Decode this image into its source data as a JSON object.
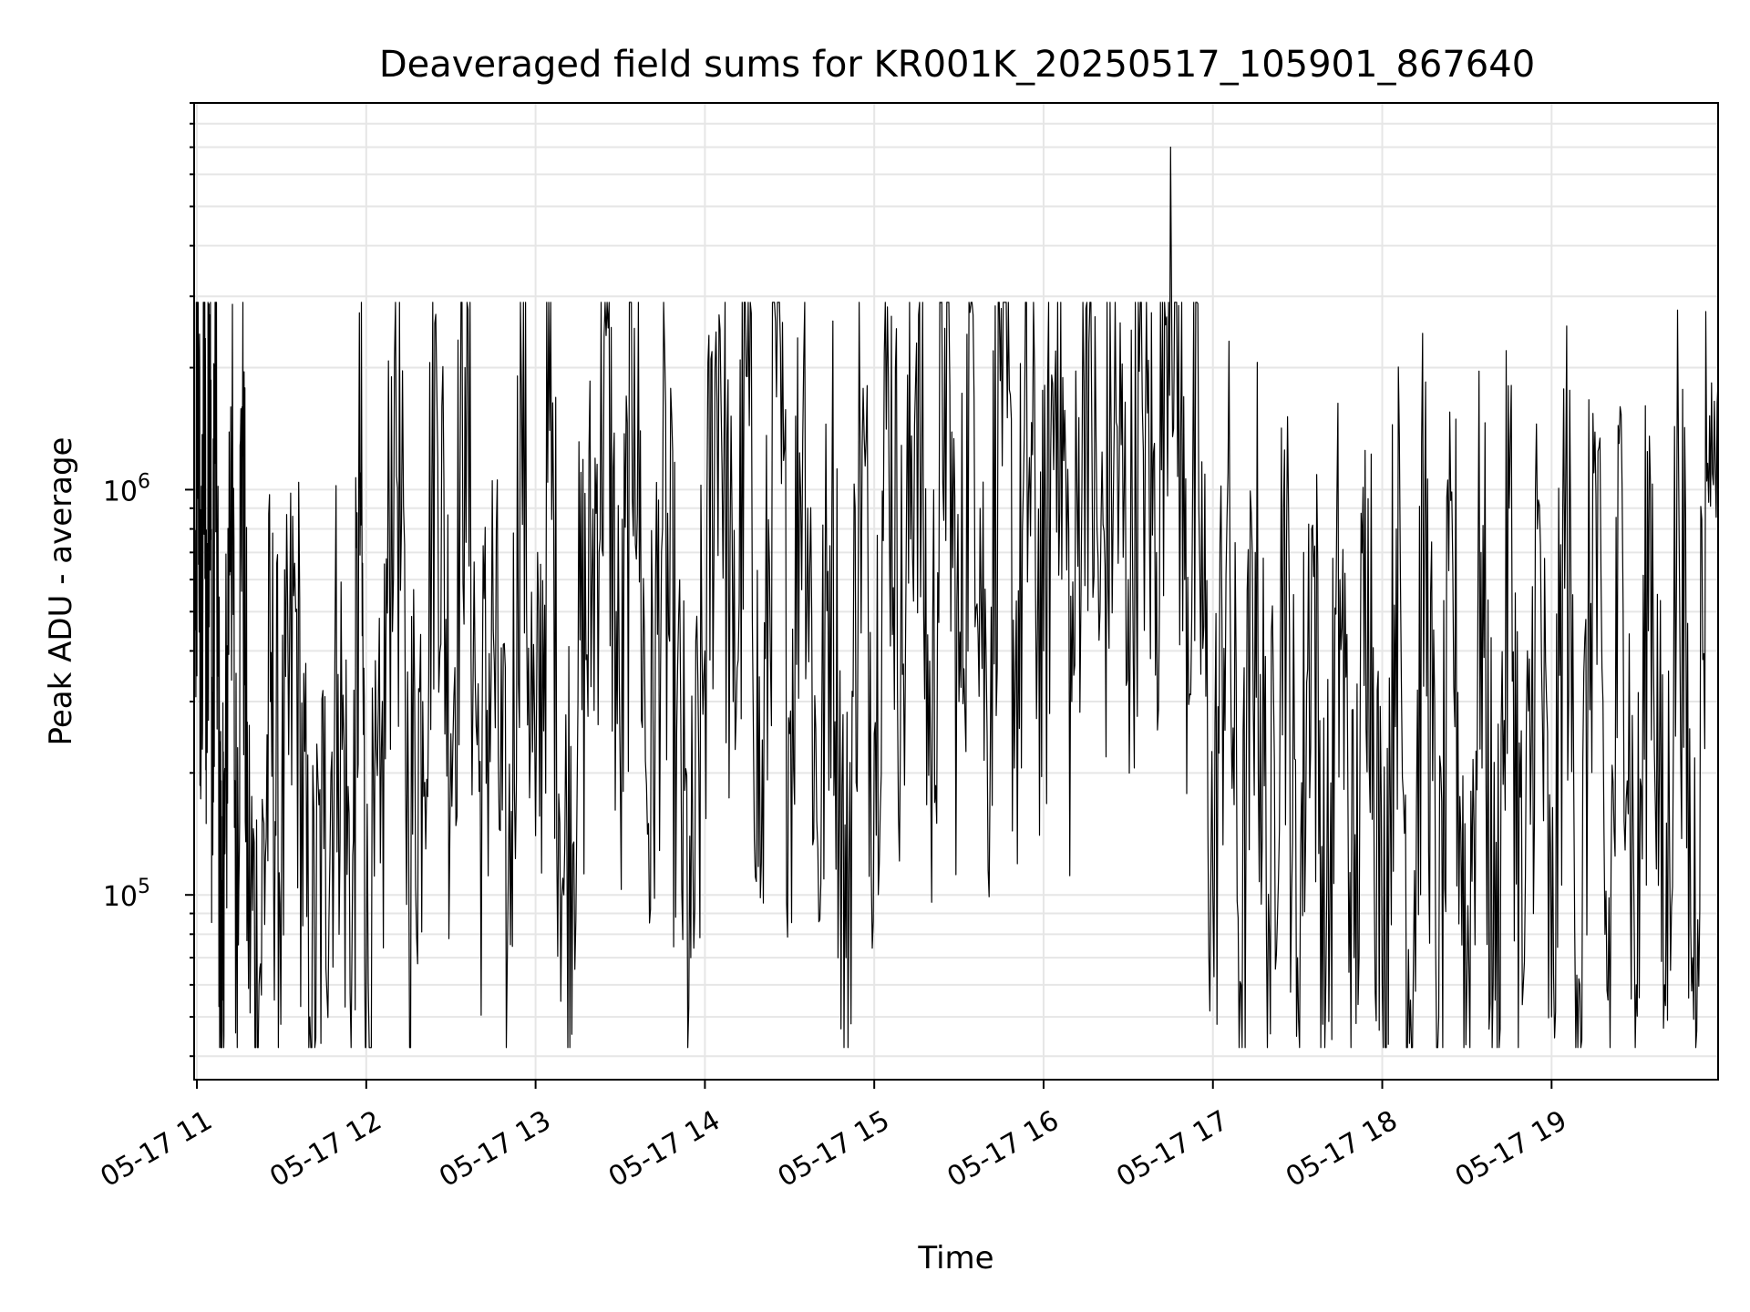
{
  "chart_data": {
    "type": "line",
    "title": "Deaveraged field sums for KR001K_20250517_105901_867640",
    "xlabel": "Time",
    "ylabel": "Peak ADU - average",
    "yscale": "log",
    "xlim": [
      "2025-05-17T10:59:01",
      "2025-05-17T19:59:00"
    ],
    "ylim": [
      35000,
      9000000
    ],
    "grid": true,
    "x_ticks": [
      "05-17 11",
      "05-17 12",
      "05-17 13",
      "05-17 14",
      "05-17 15",
      "05-17 16",
      "05-17 17",
      "05-17 18",
      "05-17 19"
    ],
    "y_ticks": [
      {
        "base": "10",
        "exp": "5"
      },
      {
        "base": "10",
        "exp": "6"
      }
    ],
    "series": [
      {
        "color": "#000000",
        "note": "Dense noisy series; representative points as [time, value] pairs",
        "points": [
          [
            "2025-05-17T10:59:30",
            450000
          ],
          [
            "2025-05-17T11:00:30",
            1900000
          ],
          [
            "2025-05-17T11:01:30",
            250000
          ],
          [
            "2025-05-17T11:02:30",
            2000000
          ],
          [
            "2025-05-17T11:03:30",
            350000
          ],
          [
            "2025-05-17T11:04:30",
            2700000
          ],
          [
            "2025-05-17T11:05:30",
            160000
          ],
          [
            "2025-05-17T11:06:30",
            2300000
          ],
          [
            "2025-05-17T11:08:00",
            120000
          ],
          [
            "2025-05-17T11:09:00",
            55000
          ],
          [
            "2025-05-17T11:10:00",
            140000
          ],
          [
            "2025-05-17T11:12:00",
            1600000
          ],
          [
            "2025-05-17T11:14:00",
            90000
          ],
          [
            "2025-05-17T11:16:00",
            1600000
          ],
          [
            "2025-05-17T11:18:00",
            110000
          ],
          [
            "2025-05-17T11:22:00",
            60000
          ],
          [
            "2025-05-17T11:26:00",
            300000
          ],
          [
            "2025-05-17T11:30:00",
            120000
          ],
          [
            "2025-05-17T11:35:00",
            500000
          ],
          [
            "2025-05-17T11:40:00",
            50000
          ],
          [
            "2025-05-17T11:45:00",
            130000
          ],
          [
            "2025-05-17T11:50:00",
            350000
          ],
          [
            "2025-05-17T11:55:00",
            80000
          ],
          [
            "2025-05-17T11:58:00",
            1100000
          ],
          [
            "2025-05-17T12:00:00",
            55000
          ],
          [
            "2025-05-17T12:05:00",
            120000
          ],
          [
            "2025-05-17T12:10:00",
            2100000
          ],
          [
            "2025-05-17T12:15:00",
            150000
          ],
          [
            "2025-05-17T12:20:00",
            300000
          ],
          [
            "2025-05-17T12:25:00",
            1800000
          ],
          [
            "2025-05-17T12:30:00",
            250000
          ],
          [
            "2025-05-17T12:35:00",
            2000000
          ],
          [
            "2025-05-17T12:40:00",
            180000
          ],
          [
            "2025-05-17T12:45:00",
            450000
          ],
          [
            "2025-05-17T12:50:00",
            70000
          ],
          [
            "2025-05-17T12:55:00",
            1800000
          ],
          [
            "2025-05-17T13:00:00",
            140000
          ],
          [
            "2025-05-17T13:05:00",
            1400000
          ],
          [
            "2025-05-17T13:10:00",
            100000
          ],
          [
            "2025-05-17T13:15:00",
            300000
          ],
          [
            "2025-05-17T13:20:00",
            600000
          ],
          [
            "2025-05-17T13:25:00",
            2400000
          ],
          [
            "2025-05-17T13:30:00",
            200000
          ],
          [
            "2025-05-17T13:35:00",
            2500000
          ],
          [
            "2025-05-17T13:40:00",
            150000
          ],
          [
            "2025-05-17T13:45:00",
            800000
          ],
          [
            "2025-05-17T13:50:00",
            250000
          ],
          [
            "2025-05-17T13:55:00",
            70000
          ],
          [
            "2025-05-17T14:00:00",
            400000
          ],
          [
            "2025-05-17T14:05:00",
            2700000
          ],
          [
            "2025-05-17T14:10:00",
            300000
          ],
          [
            "2025-05-17T14:15:00",
            1900000
          ],
          [
            "2025-05-17T14:20:00",
            120000
          ],
          [
            "2025-05-17T14:25:00",
            2600000
          ],
          [
            "2025-05-17T14:30:00",
            250000
          ],
          [
            "2025-05-17T14:35:00",
            2100000
          ],
          [
            "2025-05-17T14:40:00",
            130000
          ],
          [
            "2025-05-17T14:45:00",
            900000
          ],
          [
            "2025-05-17T14:50:00",
            70000
          ],
          [
            "2025-05-17T14:55:00",
            1300000
          ],
          [
            "2025-05-17T15:00:00",
            250000
          ],
          [
            "2025-05-17T15:05:00",
            1900000
          ],
          [
            "2025-05-17T15:10:00",
            350000
          ],
          [
            "2025-05-17T15:15:00",
            2300000
          ],
          [
            "2025-05-17T15:20:00",
            200000
          ],
          [
            "2025-05-17T15:25:00",
            2500000
          ],
          [
            "2025-05-17T15:30:00",
            300000
          ],
          [
            "2025-05-17T15:35:00",
            2700000
          ],
          [
            "2025-05-17T15:40:00",
            250000
          ],
          [
            "2025-05-17T15:45:00",
            2800000
          ],
          [
            "2025-05-17T15:50:00",
            350000
          ],
          [
            "2025-05-17T15:55:00",
            1200000
          ],
          [
            "2025-05-17T16:00:00",
            400000
          ],
          [
            "2025-05-17T16:05:00",
            2900000
          ],
          [
            "2025-05-17T16:10:00",
            300000
          ],
          [
            "2025-05-17T16:15:00",
            2800000
          ],
          [
            "2025-05-17T16:20:00",
            500000
          ],
          [
            "2025-05-17T16:25:00",
            1400000
          ],
          [
            "2025-05-17T16:30:00",
            600000
          ],
          [
            "2025-05-17T16:35:00",
            1600000
          ],
          [
            "2025-05-17T16:40:00",
            700000
          ],
          [
            "2025-05-17T16:45:00",
            7000000
          ],
          [
            "2025-05-17T16:50:00",
            600000
          ],
          [
            "2025-05-17T16:55:00",
            900000
          ],
          [
            "2025-05-17T17:00:00",
            100000
          ],
          [
            "2025-05-17T17:05:00",
            850000
          ],
          [
            "2025-05-17T17:10:00",
            60000
          ],
          [
            "2025-05-17T17:15:00",
            700000
          ],
          [
            "2025-05-17T17:20:00",
            80000
          ],
          [
            "2025-05-17T17:25:00",
            900000
          ],
          [
            "2025-05-17T17:30:00",
            70000
          ],
          [
            "2025-05-17T17:35:00",
            800000
          ],
          [
            "2025-05-17T17:40:00",
            60000
          ],
          [
            "2025-05-17T17:45:00",
            600000
          ],
          [
            "2025-05-17T17:50:00",
            70000
          ],
          [
            "2025-05-17T17:55:00",
            950000
          ],
          [
            "2025-05-17T18:00:00",
            60000
          ],
          [
            "2025-05-17T18:05:00",
            800000
          ],
          [
            "2025-05-17T18:10:00",
            55000
          ],
          [
            "2025-05-17T18:15:00",
            850000
          ],
          [
            "2025-05-17T18:20:00",
            50000
          ],
          [
            "2025-05-17T18:25:00",
            650000
          ],
          [
            "2025-05-17T18:30:00",
            60000
          ],
          [
            "2025-05-17T18:35:00",
            700000
          ],
          [
            "2025-05-17T18:40:00",
            55000
          ],
          [
            "2025-05-17T18:45:00",
            900000
          ],
          [
            "2025-05-17T18:50:00",
            60000
          ],
          [
            "2025-05-17T18:55:00",
            800000
          ],
          [
            "2025-05-17T19:00:00",
            50000
          ],
          [
            "2025-05-17T19:05:00",
            1050000
          ],
          [
            "2025-05-17T19:10:00",
            60000
          ],
          [
            "2025-05-17T19:15:00",
            1100000
          ],
          [
            "2025-05-17T19:20:00",
            55000
          ],
          [
            "2025-05-17T19:25:00",
            1000000
          ],
          [
            "2025-05-17T19:30:00",
            60000
          ],
          [
            "2025-05-17T19:35:00",
            1050000
          ],
          [
            "2025-05-17T19:40:00",
            60000
          ],
          [
            "2025-05-17T19:45:00",
            1100000
          ],
          [
            "2025-05-17T19:50:00",
            70000
          ],
          [
            "2025-05-17T19:55:00",
            1050000
          ]
        ]
      }
    ]
  }
}
